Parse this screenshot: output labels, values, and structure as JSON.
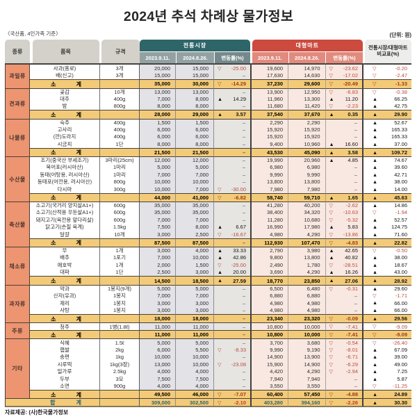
{
  "title": "2024년 추석 차례상 물가정보",
  "notes": {
    "standard": "〈국산품, 4인가족 기준〉",
    "unit": "(단위: 원)",
    "source": "자료제공: (사)한국물가정보"
  },
  "columns": {
    "category": "종류",
    "item": "품목",
    "spec": "규격",
    "market_group": "전통시장",
    "mart_group": "대형마트",
    "date_prev": "2023.9.11.",
    "date_curr": "2024.8.26.",
    "change": "변동률(%)",
    "compare_line1": "전통시장/대형마트",
    "compare_line2": "비교표(%)"
  },
  "icons": {
    "up": "▲",
    "down": "▽",
    "flat": "–"
  },
  "labels": {
    "subtotal": "소계",
    "total": "합계"
  },
  "colors": {
    "market_header": "#2e6569",
    "market_subheader": "#93a1a3",
    "market_change_subheader": "#74898c",
    "mart_header": "#cc4a3e",
    "mart_subheader": "#e18a7d",
    "category_bg": "#ed9471",
    "subtotal_bg": "#f3cb78",
    "negative": "#bc4b3f",
    "positive": "#141414",
    "total_value": "#2b6370"
  },
  "chart_data": {
    "type": "table",
    "title": "2024년 추석 차례상 물가정보",
    "sections": [
      {
        "category": "과일류",
        "items": [
          {
            "name": "사과(홍로)",
            "spec": "3개",
            "tm_prev": "20,000",
            "tm_curr": "15,000",
            "tm_chg": "-25.00",
            "mart_prev": "19,600",
            "mart_curr": "14,970",
            "mart_chg": "-23.62",
            "cmp": "-0.20"
          },
          {
            "name": "배(신고)",
            "spec": "3개",
            "tm_prev": "15,000",
            "tm_curr": "15,000",
            "tm_chg": null,
            "mart_prev": "17,630",
            "mart_curr": "14,630",
            "mart_chg": "-17.02",
            "cmp": "-2.47"
          }
        ],
        "subtotal": {
          "tm_prev": "35,000",
          "tm_curr": "30,000",
          "tm_chg": "-14.29",
          "mart_prev": "37,230",
          "mart_curr": "29,600",
          "mart_chg": "-20.49",
          "cmp": "-1.33"
        }
      },
      {
        "category": "견과류",
        "items": [
          {
            "name": "곶감",
            "spec": "10개",
            "tm_prev": "13,000",
            "tm_curr": "13,000",
            "tm_chg": null,
            "mart_prev": "13,900",
            "mart_curr": "12,950",
            "mart_chg": "-6.83",
            "cmp": "-0.38"
          },
          {
            "name": "대추",
            "spec": "400g",
            "tm_prev": "7,000",
            "tm_curr": "8,000",
            "tm_chg": "14.29",
            "mart_prev": "11,960",
            "mart_curr": "13,300",
            "mart_chg": "11.20",
            "cmp": "66.25"
          },
          {
            "name": "밤",
            "spec": "800g",
            "tm_prev": "8,000",
            "tm_curr": "8,000",
            "tm_chg": null,
            "mart_prev": "11,680",
            "mart_curr": "11,420",
            "mart_chg": "-2.23",
            "cmp": "42.75"
          }
        ],
        "subtotal": {
          "tm_prev": "28,000",
          "tm_curr": "29,000",
          "tm_chg": "3.57",
          "mart_prev": "37,540",
          "mart_curr": "37,670",
          "mart_chg": "0.35",
          "cmp": "29.90"
        }
      },
      {
        "category": "나물류",
        "items": [
          {
            "name": "숙주",
            "spec": "400g",
            "tm_prev": "1,500",
            "tm_curr": "1,500",
            "tm_chg": null,
            "mart_prev": "2,290",
            "mart_curr": "2,290",
            "mart_chg": null,
            "cmp": "52.67"
          },
          {
            "name": "고사리",
            "spec": "400g",
            "tm_prev": "6,000",
            "tm_curr": "6,000",
            "tm_chg": null,
            "mart_prev": "15,920",
            "mart_curr": "15,920",
            "mart_chg": null,
            "cmp": "165.33"
          },
          {
            "name": "(깐)도라지",
            "spec": "400g",
            "tm_prev": "6,000",
            "tm_curr": "6,000",
            "tm_chg": null,
            "mart_prev": "15,920",
            "mart_curr": "15,920",
            "mart_chg": null,
            "cmp": "165.33"
          },
          {
            "name": "시금치",
            "spec": "1단",
            "tm_prev": "8,000",
            "tm_curr": "8,000",
            "tm_chg": null,
            "mart_prev": "9,400",
            "mart_curr": "10,960",
            "mart_chg": "16.60",
            "cmp": "37.00"
          }
        ],
        "subtotal": {
          "tm_prev": "21,500",
          "tm_curr": "21,500",
          "tm_chg": null,
          "mart_prev": "43,530",
          "mart_curr": "45,090",
          "mart_chg": "3.58",
          "cmp": "109.72"
        }
      },
      {
        "category": "수산물",
        "items": [
          {
            "name": "조기(중국산 부세조기)",
            "spec": "3마리(25cm)",
            "tm_prev": "12,000",
            "tm_curr": "12,000",
            "tm_chg": null,
            "mart_prev": "19,990",
            "mart_curr": "20,960",
            "mart_chg": "4.85",
            "cmp": "74.67"
          },
          {
            "name": "북어포(러시아산)",
            "spec": "1마리",
            "tm_prev": "5,000",
            "tm_curr": "5,000",
            "tm_chg": null,
            "mart_prev": "6,980",
            "mart_curr": "6,980",
            "mart_chg": null,
            "cmp": "39.60"
          },
          {
            "name": "동태(어탕용, 러시아산)",
            "spec": "1마리",
            "tm_prev": "7,000",
            "tm_curr": "7,000",
            "tm_chg": null,
            "mart_prev": "9,990",
            "mart_curr": "9,990",
            "mart_chg": null,
            "cmp": "42.71"
          },
          {
            "name": "동태포(어전용, 러시아산)",
            "spec": "800g",
            "tm_prev": "10,000",
            "tm_curr": "10,000",
            "tm_chg": null,
            "mart_prev": "13,800",
            "mart_curr": "13,800",
            "mart_chg": null,
            "cmp": "38.00"
          },
          {
            "name": "다시마",
            "spec": "300g",
            "tm_prev": "10,000",
            "tm_curr": "7,000",
            "tm_chg": "-30.00",
            "mart_prev": "7,980",
            "mart_curr": "7,980",
            "mart_chg": null,
            "cmp": "14.00"
          }
        ],
        "subtotal": {
          "tm_prev": "44,000",
          "tm_curr": "41,000",
          "tm_chg": "-6.82",
          "mart_prev": "58,740",
          "mart_curr": "59,710",
          "mart_chg": "1.65",
          "cmp": "45.63"
        }
      },
      {
        "category": "축산물",
        "items": [
          {
            "name": "소고기(국거리 양지살A1+)",
            "spec": "600g",
            "tm_prev": "35,000",
            "tm_curr": "35,000",
            "tm_chg": null,
            "mart_prev": "41,280",
            "mart_curr": "40,200",
            "mart_chg": "-2.62",
            "cmp": "14.86"
          },
          {
            "name": "소고기(산적용 우둔살A1+)",
            "spec": "600g",
            "tm_prev": "35,000",
            "tm_curr": "35,000",
            "tm_chg": null,
            "mart_prev": "38,400",
            "mart_curr": "34,320",
            "mart_chg": "-10.63",
            "cmp": "-1.94"
          },
          {
            "name": "돼지고기(육전용 앞다리살)",
            "spec": "600g",
            "tm_prev": "7,000",
            "tm_curr": "7,000",
            "tm_chg": null,
            "mart_prev": "11,280",
            "mart_curr": "10,680",
            "mart_chg": "-5.32",
            "cmp": "52.57"
          },
          {
            "name": "닭고기(손질 육계)",
            "spec": "1.5kg",
            "tm_prev": "7,500",
            "tm_curr": "8,000",
            "tm_chg": "6.67",
            "mart_prev": "16,990",
            "mart_curr": "17,980",
            "mart_chg": "5.83",
            "cmp": "124.75"
          },
          {
            "name": "달걀",
            "spec": "10개",
            "tm_prev": "3,000",
            "tm_curr": "2,500",
            "tm_chg": "-16.67",
            "mart_prev": "4,980",
            "mart_curr": "4,290",
            "mart_chg": "-13.86",
            "cmp": "71.60"
          }
        ],
        "subtotal": {
          "tm_prev": "87,500",
          "tm_curr": "87,500",
          "tm_chg": null,
          "mart_prev": "112,930",
          "mart_curr": "107,470",
          "mart_chg": "-4.83",
          "cmp": "22.82"
        }
      },
      {
        "category": "채소류",
        "items": [
          {
            "name": "무",
            "spec": "1개",
            "tm_prev": "3,000",
            "tm_curr": "4,000",
            "tm_chg": "33.33",
            "mart_prev": "2,790",
            "mart_curr": "3,980",
            "mart_chg": "42.65",
            "cmp": "-0.50"
          },
          {
            "name": "배추",
            "spec": "1포기",
            "tm_prev": "7,000",
            "tm_curr": "10,000",
            "tm_chg": "42.86",
            "mart_prev": "9,800",
            "mart_curr": "13,800",
            "mart_chg": "40.82",
            "cmp": "38.00"
          },
          {
            "name": "애호박",
            "spec": "1개",
            "tm_prev": "2,000",
            "tm_curr": "1,500",
            "tm_chg": "-25.00",
            "mart_prev": "2,490",
            "mart_curr": "1,780",
            "mart_chg": "-28.51",
            "cmp": "18.67"
          },
          {
            "name": "대파",
            "spec": "1단",
            "tm_prev": "2,500",
            "tm_curr": "3,000",
            "tm_chg": "20.00",
            "mart_prev": "3,690",
            "mart_curr": "4,290",
            "mart_chg": "16.26",
            "cmp": "43.00"
          }
        ],
        "subtotal": {
          "tm_prev": "14,500",
          "tm_curr": "18,500",
          "tm_chg": "27.59",
          "mart_prev": "18,770",
          "mart_curr": "23,850",
          "mart_chg": "27.06",
          "cmp": "28.92"
        }
      },
      {
        "category": "과자류",
        "items": [
          {
            "name": "약과",
            "spec": "1봉지(9개)",
            "tm_prev": "5,000",
            "tm_curr": "5,000",
            "tm_chg": null,
            "mart_prev": "6,500",
            "mart_curr": "6,480",
            "mart_chg": "-0.31",
            "cmp": "29.60"
          },
          {
            "name": "산자(유과)",
            "spec": "1봉지",
            "tm_prev": "7,000",
            "tm_curr": "7,000",
            "tm_chg": null,
            "mart_prev": "6,880",
            "mart_curr": "6,880",
            "mart_chg": null,
            "cmp": "-1.71"
          },
          {
            "name": "제리",
            "spec": "1봉지",
            "tm_prev": "3,000",
            "tm_curr": "3,000",
            "tm_chg": null,
            "mart_prev": "4,980",
            "mart_curr": "4,980",
            "mart_chg": null,
            "cmp": "66.00"
          },
          {
            "name": "사탕",
            "spec": "1봉지",
            "tm_prev": "3,000",
            "tm_curr": "3,000",
            "tm_chg": null,
            "mart_prev": "4,980",
            "mart_curr": "4,980",
            "mart_chg": null,
            "cmp": "66.00"
          }
        ],
        "subtotal": {
          "tm_prev": "18,000",
          "tm_curr": "18,000",
          "tm_chg": null,
          "mart_prev": "23,340",
          "mart_curr": "23,320",
          "mart_chg": "-0.09",
          "cmp": "29.56"
        }
      },
      {
        "category": "주류",
        "items": [
          {
            "name": "청주",
            "spec": "1병(1.8ℓ)",
            "tm_prev": "11,000",
            "tm_curr": "11,000",
            "tm_chg": null,
            "mart_prev": "10,800",
            "mart_curr": "10,000",
            "mart_chg": "-7.41",
            "cmp": "-9.09"
          }
        ],
        "subtotal": {
          "tm_prev": "11,000",
          "tm_curr": "11,000",
          "tm_chg": null,
          "mart_prev": "10,800",
          "mart_curr": "10,000",
          "mart_chg": "-7.41",
          "cmp": "-9.09"
        }
      },
      {
        "category": "기타",
        "items": [
          {
            "name": "식혜",
            "spec": "1.5ℓ",
            "tm_prev": "5,000",
            "tm_curr": "5,000",
            "tm_chg": null,
            "mart_prev": "3,700",
            "mart_curr": "3,680",
            "mart_chg": "-0.54",
            "cmp": "-26.40"
          },
          {
            "name": "햅쌀",
            "spec": "2kg",
            "tm_prev": "6,000",
            "tm_curr": "5,500",
            "tm_chg": "-8.33",
            "mart_prev": "9,990",
            "mart_curr": "9,190",
            "mart_chg": "-8.01",
            "cmp": "67.09"
          },
          {
            "name": "송편",
            "spec": "1kg",
            "tm_prev": "10,000",
            "tm_curr": "10,000",
            "tm_chg": null,
            "mart_prev": "14,900",
            "mart_curr": "13,900",
            "mart_chg": "-6.71",
            "cmp": "39.00"
          },
          {
            "name": "시루떡",
            "spec": "1kg(3장)",
            "tm_prev": "13,000",
            "tm_curr": "10,000",
            "tm_chg": "-23.08",
            "mart_prev": "15,900",
            "mart_curr": "14,900",
            "mart_chg": "-6.29",
            "cmp": "49.00"
          },
          {
            "name": "밀가루",
            "spec": "2.5kg",
            "tm_prev": "4,000",
            "tm_curr": "4,000",
            "tm_chg": null,
            "mart_prev": "4,420",
            "mart_curr": "4,290",
            "mart_chg": "-2.94",
            "cmp": "7.25"
          },
          {
            "name": "두부",
            "spec": "3모",
            "tm_prev": "7,500",
            "tm_curr": "7,500",
            "tm_chg": null,
            "mart_prev": "7,940",
            "mart_curr": "7,940",
            "mart_chg": null,
            "cmp": "5.87"
          },
          {
            "name": "소면",
            "spec": "900g",
            "tm_prev": "4,000",
            "tm_curr": "4,000",
            "tm_chg": null,
            "mart_prev": "3,550",
            "mart_curr": "3,550",
            "mart_chg": null,
            "cmp": "-11.25"
          }
        ],
        "subtotal": {
          "tm_prev": "49,500",
          "tm_curr": "46,000",
          "tm_chg": "-7.07",
          "mart_prev": "60,400",
          "mart_curr": "57,450",
          "mart_chg": "-4.88",
          "cmp": "24.89"
        }
      }
    ],
    "total": {
      "tm_prev": "309,000",
      "tm_curr": "302,500",
      "tm_chg": "-2.10",
      "mart_prev": "403,280",
      "mart_curr": "394,160",
      "mart_chg": "-2.26",
      "cmp": "30.30"
    }
  }
}
